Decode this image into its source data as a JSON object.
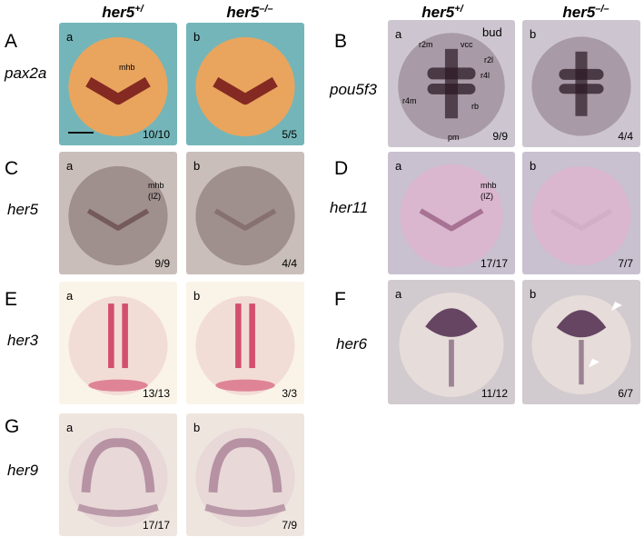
{
  "headers": [
    {
      "gene": "her5",
      "genotype": "+/"
    },
    {
      "gene": "her5",
      "genotype": "–/–"
    },
    {
      "gene": "her5",
      "genotype": "+/"
    },
    {
      "gene": "her5",
      "genotype": "–/–"
    }
  ],
  "panels": [
    {
      "letter": "A",
      "gene": "pax2a",
      "images": [
        {
          "letter": "a",
          "count": "10/10",
          "annotations": [
            "mhb"
          ]
        },
        {
          "letter": "b",
          "count": "5/5"
        }
      ]
    },
    {
      "letter": "B",
      "gene": "pou5f3",
      "images": [
        {
          "letter": "a",
          "count": "9/9",
          "annotations": [
            "bud",
            "r2m",
            "vcc",
            "r2l",
            "r4l",
            "r4m",
            "rb",
            "pm"
          ]
        },
        {
          "letter": "b",
          "count": "4/4"
        }
      ]
    },
    {
      "letter": "C",
      "gene": "her5",
      "images": [
        {
          "letter": "a",
          "count": "9/9",
          "annotations": [
            "mhb",
            "(IZ)"
          ]
        },
        {
          "letter": "b",
          "count": "4/4"
        }
      ]
    },
    {
      "letter": "D",
      "gene": "her11",
      "images": [
        {
          "letter": "a",
          "count": "17/17",
          "annotations": [
            "mhb",
            "(IZ)"
          ]
        },
        {
          "letter": "b",
          "count": "7/7"
        }
      ]
    },
    {
      "letter": "E",
      "gene": "her3",
      "images": [
        {
          "letter": "a",
          "count": "13/13"
        },
        {
          "letter": "b",
          "count": "3/3"
        }
      ]
    },
    {
      "letter": "F",
      "gene": "her6",
      "images": [
        {
          "letter": "a",
          "count": "11/12"
        },
        {
          "letter": "b",
          "count": "6/7"
        }
      ]
    },
    {
      "letter": "G",
      "gene": "her9",
      "images": [
        {
          "letter": "a",
          "count": "17/17"
        },
        {
          "letter": "b",
          "count": "7/9"
        }
      ]
    }
  ]
}
